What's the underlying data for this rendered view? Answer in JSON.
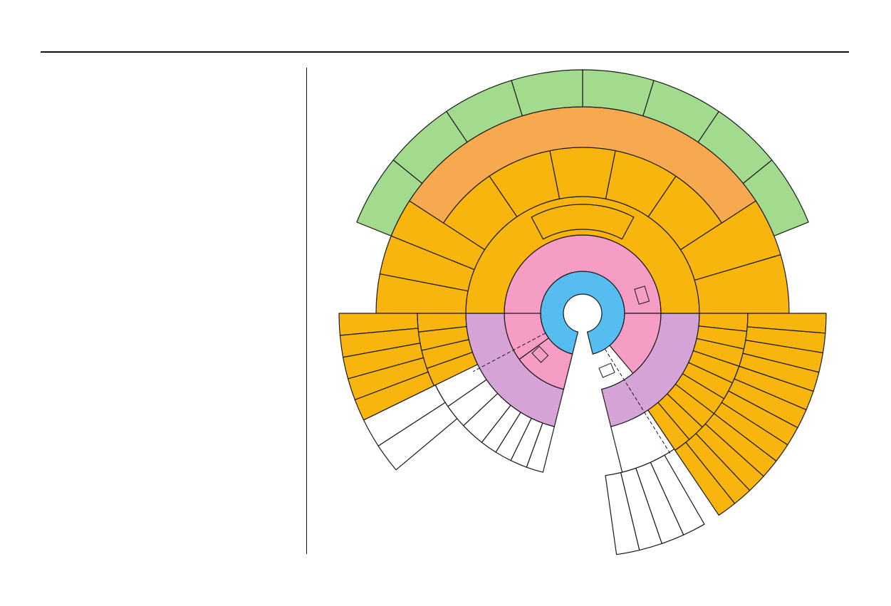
{
  "colors": {
    "core": "#55bdef",
    "level1": "#f59dc4",
    "level1_alt": "#d6a3d6",
    "level2": "#f8b50e",
    "level3": "#f6a94f",
    "level4": "#a3db8e",
    "empty": "#ffffff",
    "stroke": "#1a1a1a"
  },
  "diagram": {
    "type": "sunburst"
  }
}
